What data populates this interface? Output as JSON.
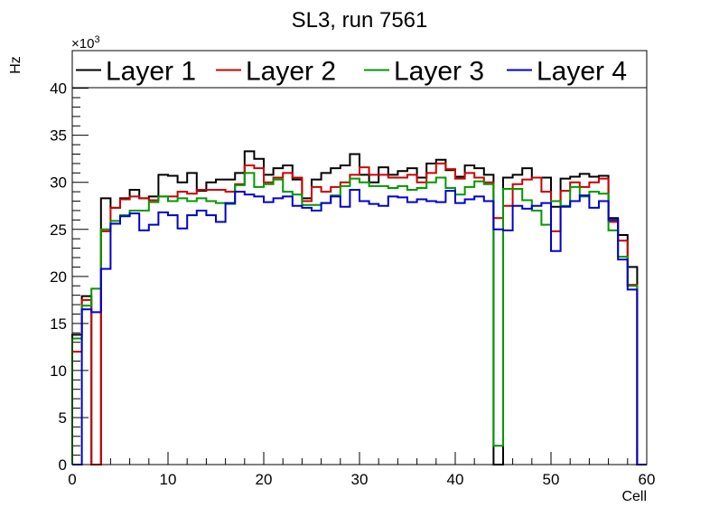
{
  "chart_data": {
    "type": "step-histogram",
    "title": "SL3, run 7561",
    "xlabel": "Cell",
    "ylabel": "Hz",
    "y_multiplier_base": "×10",
    "y_multiplier_exp": "3",
    "xlim": [
      0,
      60
    ],
    "ylim": [
      0,
      44
    ],
    "x_ticks": [
      0,
      10,
      20,
      30,
      40,
      50,
      60
    ],
    "y_ticks": [
      0,
      5,
      10,
      15,
      20,
      25,
      30,
      35,
      40
    ],
    "bin_width": 1,
    "series": [
      {
        "name": "Layer 1",
        "color": "#000000",
        "values": [
          13.8,
          17.9,
          0,
          28.3,
          27.3,
          28.3,
          29.2,
          28.3,
          28.5,
          30.8,
          30.7,
          30.0,
          31.0,
          29.1,
          30.0,
          30.3,
          30.3,
          31.0,
          33.3,
          32.5,
          30.8,
          31.5,
          31.8,
          30.3,
          28.3,
          30.3,
          31.0,
          31.5,
          31.8,
          33.0,
          30.8,
          30.0,
          31.6,
          30.8,
          31.2,
          31.5,
          30.5,
          32.0,
          32.4,
          31.3,
          30.6,
          31.8,
          31.5,
          30.8,
          0,
          30.5,
          30.8,
          31.5,
          30.5,
          30.5,
          27.4,
          30.4,
          30.6,
          30.9,
          30.6,
          30.7,
          26.2,
          24.4,
          21.0,
          0
        ],
        "values_raw_note": ""
      },
      {
        "name": "Layer 2",
        "color": "#cc0000",
        "values": [
          12.0,
          17.5,
          0,
          24.8,
          27.3,
          28.2,
          28.5,
          28.3,
          28.1,
          28.5,
          28.5,
          29.0,
          28.8,
          29.2,
          29.2,
          29.2,
          29.0,
          29.8,
          31.8,
          31.5,
          30.0,
          30.5,
          31.0,
          30.5,
          28.0,
          29.5,
          29.0,
          29.5,
          30.0,
          30.8,
          31.6,
          30.8,
          30.8,
          30.5,
          30.5,
          30.8,
          30.0,
          31.0,
          32.0,
          31.4,
          30.4,
          31.0,
          30.5,
          30.0,
          26.2,
          27.5,
          29.8,
          30.3,
          30.5,
          29.0,
          24.8,
          29.1,
          30.0,
          29.5,
          30.0,
          30.4,
          25.8,
          23.8,
          19.1,
          0
        ]
      },
      {
        "name": "Layer 3",
        "color": "#009900",
        "values": [
          13.4,
          16.9,
          18.7,
          25.0,
          25.9,
          26.5,
          27.0,
          27.0,
          27.9,
          28.5,
          28.0,
          28.3,
          28.0,
          28.3,
          28.0,
          27.8,
          27.7,
          29.7,
          31.0,
          29.5,
          29.8,
          30.3,
          29.0,
          28.7,
          27.6,
          27.6,
          27.8,
          28.6,
          29.6,
          30.4,
          30.0,
          29.6,
          29.6,
          29.4,
          29.6,
          29.2,
          29.4,
          30.0,
          30.5,
          29.4,
          28.7,
          29.5,
          30.1,
          29.8,
          2.0,
          29.3,
          29.3,
          28.1,
          27.0,
          25.5,
          28.0,
          27.5,
          29.5,
          28.5,
          29.0,
          28.8,
          24.9,
          22.1,
          19.0,
          0
        ]
      },
      {
        "name": "Layer 4",
        "color": "#0000cc",
        "values": [
          0,
          16.5,
          16.2,
          20.8,
          25.6,
          26.4,
          26.7,
          24.9,
          25.5,
          26.8,
          26.5,
          25.1,
          26.5,
          27.0,
          26.5,
          25.8,
          27.8,
          29.0,
          28.7,
          28.5,
          27.9,
          28.3,
          28.5,
          27.5,
          27.3,
          27.0,
          27.8,
          28.5,
          27.4,
          29.2,
          28.0,
          27.7,
          27.5,
          28.5,
          28.4,
          27.9,
          28.2,
          28.0,
          27.9,
          29.1,
          27.8,
          28.2,
          28.5,
          28.0,
          25.0,
          24.9,
          27.5,
          27.2,
          27.5,
          27.8,
          22.7,
          27.4,
          28.0,
          28.6,
          27.3,
          28.0,
          26.0,
          21.8,
          18.6,
          0
        ]
      }
    ]
  }
}
